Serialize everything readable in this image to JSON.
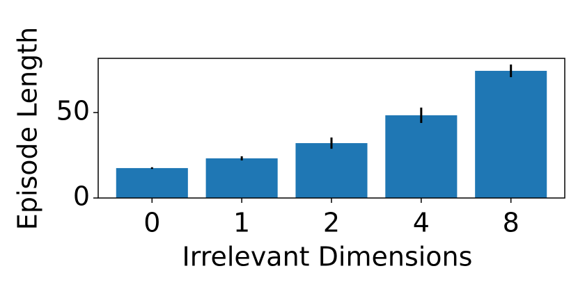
{
  "chart_data": {
    "type": "bar",
    "xlabel": "Irrelevant Dimensions",
    "ylabel": "Episode Length",
    "categories": [
      "0",
      "1",
      "2",
      "4",
      "8"
    ],
    "values": [
      17.5,
      23.2,
      32.1,
      48.4,
      74.4
    ],
    "errors": [
      0.5,
      1.2,
      3.3,
      4.5,
      3.7
    ],
    "color": "#1f77b4",
    "ylim": [
      0,
      81.7
    ],
    "yticks": [
      0,
      50
    ]
  }
}
